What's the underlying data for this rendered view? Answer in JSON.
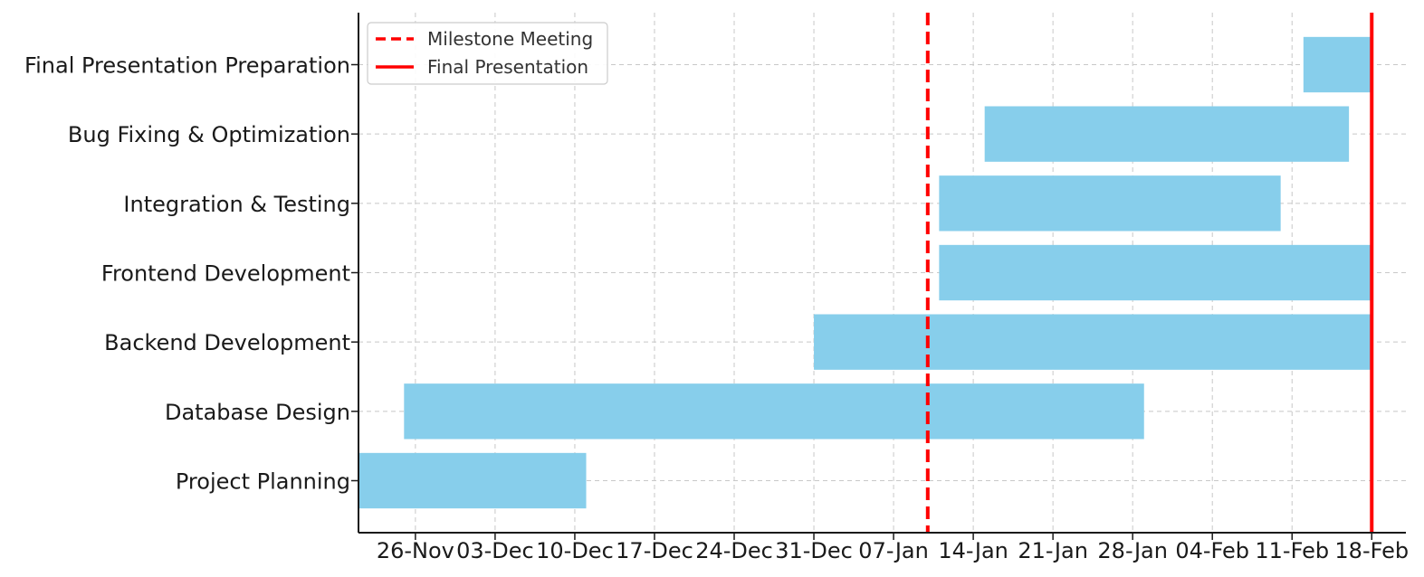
{
  "chart_data": {
    "type": "gantt",
    "title": "",
    "xlabel": "",
    "ylabel": "",
    "x_axis": {
      "type": "date",
      "range": [
        "2023-11-21",
        "2024-02-21"
      ],
      "ticks": [
        {
          "date": "2023-11-26",
          "label": "26-Nov"
        },
        {
          "date": "2023-12-03",
          "label": "03-Dec"
        },
        {
          "date": "2023-12-10",
          "label": "10-Dec"
        },
        {
          "date": "2023-12-17",
          "label": "17-Dec"
        },
        {
          "date": "2023-12-24",
          "label": "24-Dec"
        },
        {
          "date": "2023-12-31",
          "label": "31-Dec"
        },
        {
          "date": "2024-01-07",
          "label": "07-Jan"
        },
        {
          "date": "2024-01-14",
          "label": "14-Jan"
        },
        {
          "date": "2024-01-21",
          "label": "21-Jan"
        },
        {
          "date": "2024-01-28",
          "label": "28-Jan"
        },
        {
          "date": "2024-02-04",
          "label": "04-Feb"
        },
        {
          "date": "2024-02-11",
          "label": "11-Feb"
        },
        {
          "date": "2024-02-18",
          "label": "18-Feb"
        }
      ]
    },
    "tasks": [
      {
        "name": "Project Planning",
        "start": "2023-11-21",
        "end": "2023-12-11"
      },
      {
        "name": "Database Design",
        "start": "2023-11-25",
        "end": "2024-01-29"
      },
      {
        "name": "Backend Development",
        "start": "2023-12-31",
        "end": "2024-02-18"
      },
      {
        "name": "Frontend Development",
        "start": "2024-01-11",
        "end": "2024-02-18"
      },
      {
        "name": "Integration & Testing",
        "start": "2024-01-11",
        "end": "2024-02-10"
      },
      {
        "name": "Bug Fixing & Optimization",
        "start": "2024-01-15",
        "end": "2024-02-16"
      },
      {
        "name": "Final Presentation Preparation",
        "start": "2024-02-12",
        "end": "2024-02-18"
      }
    ],
    "milestones": [
      {
        "name": "Milestone Meeting",
        "date": "2024-01-10",
        "style": "dashed",
        "color": "#ff0000"
      },
      {
        "name": "Final Presentation",
        "date": "2024-02-18",
        "style": "solid",
        "color": "#ff0000"
      }
    ],
    "bar_color": "#87ceeb",
    "grid": true,
    "legend_position": "top-left"
  }
}
